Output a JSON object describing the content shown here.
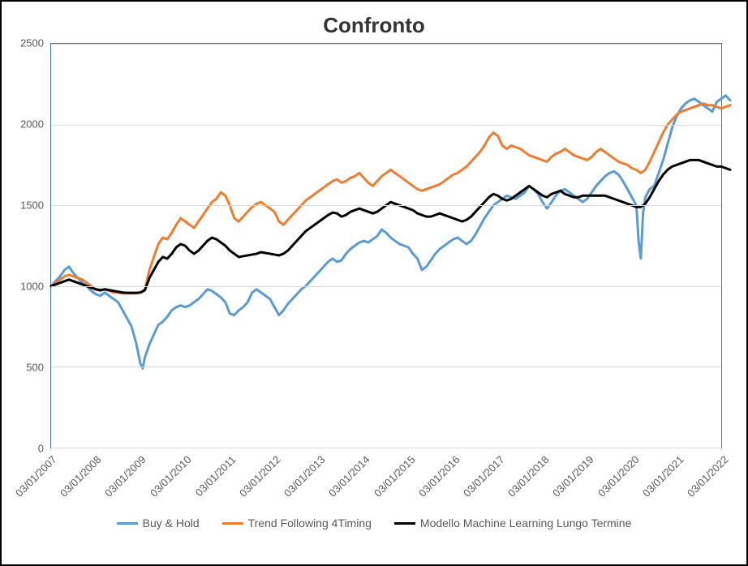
{
  "chart": {
    "type": "line",
    "title": "Confronto",
    "title_fontsize": 26,
    "title_fontweight": "bold",
    "background_color": "#ffffff",
    "border_color": "#000000",
    "plot_border_color": "#4472c4",
    "grid_color": "#d9d9d9",
    "axis_label_color": "#595959",
    "axis_label_fontsize": 13,
    "legend_fontsize": 14,
    "ylim": [
      0,
      2500
    ],
    "ytick_step": 500,
    "y_ticks": [
      0,
      500,
      1000,
      1500,
      2000,
      2500
    ],
    "x_categories": [
      "03/01/2007",
      "03/01/2008",
      "03/01/2009",
      "03/01/2010",
      "03/01/2011",
      "03/01/2012",
      "03/01/2013",
      "03/01/2014",
      "03/01/2015",
      "03/01/2016",
      "03/01/2017",
      "03/01/2018",
      "03/01/2019",
      "03/01/2020",
      "03/01/2021",
      "03/01/2022"
    ],
    "x_index": [
      0,
      1,
      2,
      3,
      4,
      5,
      6,
      7,
      8,
      9,
      10,
      11,
      12,
      13,
      14,
      15
    ],
    "x_tick_rotation": -45,
    "series": [
      {
        "name": "Buy & Hold",
        "color": "#5b9bd5",
        "line_width": 3,
        "data_x": [
          0,
          0.1,
          0.2,
          0.3,
          0.4,
          0.5,
          0.6,
          0.7,
          0.8,
          0.9,
          1,
          1.1,
          1.2,
          1.3,
          1.4,
          1.5,
          1.6,
          1.7,
          1.8,
          1.9,
          2,
          2.05,
          2.1,
          2.2,
          2.3,
          2.4,
          2.5,
          2.6,
          2.7,
          2.8,
          2.9,
          3,
          3.1,
          3.2,
          3.3,
          3.4,
          3.5,
          3.6,
          3.7,
          3.8,
          3.9,
          4,
          4.1,
          4.2,
          4.3,
          4.4,
          4.5,
          4.6,
          4.7,
          4.8,
          4.9,
          5,
          5.1,
          5.2,
          5.3,
          5.4,
          5.5,
          5.6,
          5.7,
          5.8,
          5.9,
          6,
          6.1,
          6.2,
          6.3,
          6.4,
          6.5,
          6.6,
          6.7,
          6.8,
          6.9,
          7,
          7.1,
          7.2,
          7.3,
          7.4,
          7.5,
          7.6,
          7.7,
          7.8,
          7.9,
          8,
          8.1,
          8.2,
          8.3,
          8.4,
          8.5,
          8.6,
          8.7,
          8.8,
          8.9,
          9,
          9.1,
          9.2,
          9.3,
          9.4,
          9.5,
          9.6,
          9.7,
          9.8,
          9.9,
          10,
          10.1,
          10.2,
          10.3,
          10.4,
          10.5,
          10.6,
          10.7,
          10.8,
          10.9,
          11,
          11.1,
          11.2,
          11.3,
          11.4,
          11.5,
          11.6,
          11.7,
          11.8,
          11.9,
          12,
          12.1,
          12.2,
          12.3,
          12.4,
          12.5,
          12.6,
          12.7,
          12.8,
          12.9,
          13,
          13.1,
          13.15,
          13.2,
          13.25,
          13.3,
          13.4,
          13.5,
          13.6,
          13.7,
          13.8,
          13.9,
          14,
          14.1,
          14.2,
          14.3,
          14.4,
          14.5,
          14.6,
          14.7,
          14.8,
          14.9,
          15,
          15.1,
          15.2
        ],
        "data_y": [
          1000,
          1030,
          1060,
          1100,
          1120,
          1080,
          1050,
          1020,
          1000,
          970,
          950,
          940,
          960,
          940,
          920,
          900,
          850,
          800,
          750,
          650,
          520,
          490,
          560,
          640,
          700,
          760,
          780,
          810,
          850,
          870,
          880,
          870,
          880,
          900,
          920,
          950,
          980,
          970,
          950,
          930,
          900,
          830,
          820,
          850,
          870,
          900,
          960,
          980,
          960,
          940,
          920,
          870,
          820,
          850,
          890,
          920,
          950,
          980,
          1000,
          1030,
          1060,
          1090,
          1120,
          1150,
          1170,
          1150,
          1160,
          1200,
          1230,
          1250,
          1270,
          1280,
          1270,
          1290,
          1310,
          1350,
          1330,
          1300,
          1280,
          1260,
          1250,
          1240,
          1200,
          1170,
          1100,
          1120,
          1160,
          1200,
          1230,
          1250,
          1270,
          1290,
          1300,
          1280,
          1260,
          1280,
          1320,
          1370,
          1420,
          1460,
          1500,
          1520,
          1540,
          1560,
          1550,
          1540,
          1560,
          1580,
          1620,
          1600,
          1570,
          1520,
          1480,
          1520,
          1560,
          1590,
          1600,
          1580,
          1560,
          1540,
          1520,
          1540,
          1580,
          1620,
          1650,
          1680,
          1700,
          1710,
          1690,
          1650,
          1600,
          1550,
          1500,
          1280,
          1170,
          1450,
          1550,
          1600,
          1620,
          1700,
          1780,
          1880,
          1980,
          2050,
          2100,
          2130,
          2150,
          2160,
          2140,
          2120,
          2100,
          2080,
          2140,
          2160,
          2180,
          2150
        ]
      },
      {
        "name": "Trend Following 4Timing",
        "color": "#ed7d31",
        "line_width": 3,
        "data_x": [
          0,
          0.1,
          0.2,
          0.3,
          0.4,
          0.5,
          0.6,
          0.7,
          0.8,
          0.9,
          1,
          1.1,
          1.2,
          1.3,
          1.4,
          1.5,
          1.6,
          1.7,
          1.8,
          1.9,
          2,
          2.1,
          2.2,
          2.3,
          2.4,
          2.5,
          2.6,
          2.7,
          2.8,
          2.9,
          3,
          3.1,
          3.2,
          3.3,
          3.4,
          3.5,
          3.6,
          3.7,
          3.8,
          3.9,
          4,
          4.1,
          4.2,
          4.3,
          4.4,
          4.5,
          4.6,
          4.7,
          4.8,
          4.9,
          5,
          5.1,
          5.2,
          5.3,
          5.4,
          5.5,
          5.6,
          5.7,
          5.8,
          5.9,
          6,
          6.1,
          6.2,
          6.3,
          6.4,
          6.5,
          6.6,
          6.7,
          6.8,
          6.9,
          7,
          7.1,
          7.2,
          7.3,
          7.4,
          7.5,
          7.6,
          7.7,
          7.8,
          7.9,
          8,
          8.1,
          8.2,
          8.3,
          8.4,
          8.5,
          8.6,
          8.7,
          8.8,
          8.9,
          9,
          9.1,
          9.2,
          9.3,
          9.4,
          9.5,
          9.6,
          9.7,
          9.8,
          9.9,
          10,
          10.1,
          10.2,
          10.3,
          10.4,
          10.5,
          10.6,
          10.7,
          10.8,
          10.9,
          11,
          11.1,
          11.2,
          11.3,
          11.4,
          11.5,
          11.6,
          11.7,
          11.8,
          11.9,
          12,
          12.1,
          12.2,
          12.3,
          12.4,
          12.5,
          12.6,
          12.7,
          12.8,
          12.9,
          13,
          13.1,
          13.2,
          13.3,
          13.4,
          13.5,
          13.6,
          13.7,
          13.8,
          13.9,
          14,
          14.1,
          14.2,
          14.3,
          14.4,
          14.5,
          14.6,
          14.7,
          14.8,
          14.9,
          15,
          15.1,
          15.2
        ],
        "data_y": [
          1000,
          1020,
          1040,
          1060,
          1070,
          1060,
          1050,
          1040,
          1020,
          1000,
          980,
          970,
          980,
          970,
          960,
          960,
          955,
          955,
          955,
          955,
          960,
          980,
          1100,
          1180,
          1260,
          1300,
          1290,
          1330,
          1380,
          1420,
          1400,
          1380,
          1360,
          1400,
          1440,
          1480,
          1520,
          1540,
          1580,
          1560,
          1500,
          1420,
          1400,
          1430,
          1460,
          1490,
          1510,
          1520,
          1500,
          1480,
          1460,
          1400,
          1380,
          1410,
          1440,
          1470,
          1500,
          1530,
          1550,
          1570,
          1590,
          1610,
          1630,
          1650,
          1660,
          1640,
          1650,
          1670,
          1680,
          1700,
          1670,
          1640,
          1620,
          1650,
          1680,
          1700,
          1720,
          1700,
          1680,
          1660,
          1640,
          1620,
          1600,
          1590,
          1600,
          1610,
          1620,
          1630,
          1650,
          1670,
          1690,
          1700,
          1720,
          1740,
          1770,
          1800,
          1830,
          1870,
          1920,
          1950,
          1930,
          1870,
          1850,
          1870,
          1860,
          1850,
          1830,
          1810,
          1800,
          1790,
          1780,
          1770,
          1800,
          1820,
          1830,
          1850,
          1830,
          1810,
          1800,
          1790,
          1780,
          1800,
          1830,
          1850,
          1830,
          1810,
          1790,
          1770,
          1760,
          1750,
          1730,
          1720,
          1700,
          1720,
          1770,
          1830,
          1890,
          1950,
          2000,
          2030,
          2060,
          2080,
          2090,
          2100,
          2110,
          2120,
          2130,
          2120,
          2120,
          2110,
          2100,
          2110,
          2120
        ]
      },
      {
        "name": "Modello Machine Learning Lungo Termine",
        "color": "#000000",
        "line_width": 3,
        "data_x": [
          0,
          0.1,
          0.2,
          0.3,
          0.4,
          0.5,
          0.6,
          0.7,
          0.8,
          0.9,
          1,
          1.1,
          1.2,
          1.3,
          1.4,
          1.5,
          1.6,
          1.7,
          1.8,
          1.9,
          2,
          2.1,
          2.2,
          2.3,
          2.4,
          2.5,
          2.6,
          2.7,
          2.8,
          2.9,
          3,
          3.1,
          3.2,
          3.3,
          3.4,
          3.5,
          3.6,
          3.7,
          3.8,
          3.9,
          4,
          4.1,
          4.2,
          4.3,
          4.4,
          4.5,
          4.6,
          4.7,
          4.8,
          4.9,
          5,
          5.1,
          5.2,
          5.3,
          5.4,
          5.5,
          5.6,
          5.7,
          5.8,
          5.9,
          6,
          6.1,
          6.2,
          6.3,
          6.4,
          6.5,
          6.6,
          6.7,
          6.8,
          6.9,
          7,
          7.1,
          7.2,
          7.3,
          7.4,
          7.5,
          7.6,
          7.7,
          7.8,
          7.9,
          8,
          8.1,
          8.2,
          8.3,
          8.4,
          8.5,
          8.6,
          8.7,
          8.8,
          8.9,
          9,
          9.1,
          9.2,
          9.3,
          9.4,
          9.5,
          9.6,
          9.7,
          9.8,
          9.9,
          10,
          10.1,
          10.2,
          10.3,
          10.4,
          10.5,
          10.6,
          10.7,
          10.8,
          10.9,
          11,
          11.1,
          11.2,
          11.3,
          11.4,
          11.5,
          11.6,
          11.7,
          11.8,
          11.9,
          12,
          12.1,
          12.2,
          12.3,
          12.4,
          12.5,
          12.6,
          12.7,
          12.8,
          12.9,
          13,
          13.1,
          13.2,
          13.3,
          13.4,
          13.5,
          13.6,
          13.7,
          13.8,
          13.9,
          14,
          14.1,
          14.2,
          14.3,
          14.4,
          14.5,
          14.6,
          14.7,
          14.8,
          14.9,
          15,
          15.1,
          15.2
        ],
        "data_y": [
          1000,
          1010,
          1020,
          1030,
          1040,
          1030,
          1020,
          1010,
          1000,
          990,
          980,
          975,
          980,
          975,
          970,
          965,
          960,
          958,
          958,
          958,
          960,
          975,
          1050,
          1100,
          1150,
          1180,
          1170,
          1200,
          1240,
          1260,
          1250,
          1220,
          1200,
          1220,
          1250,
          1280,
          1300,
          1290,
          1270,
          1250,
          1220,
          1200,
          1180,
          1185,
          1190,
          1195,
          1200,
          1210,
          1205,
          1200,
          1195,
          1190,
          1200,
          1220,
          1250,
          1280,
          1310,
          1340,
          1360,
          1380,
          1400,
          1420,
          1440,
          1455,
          1450,
          1430,
          1440,
          1460,
          1470,
          1480,
          1470,
          1460,
          1450,
          1460,
          1480,
          1500,
          1520,
          1510,
          1500,
          1490,
          1480,
          1470,
          1450,
          1440,
          1430,
          1430,
          1440,
          1450,
          1440,
          1430,
          1420,
          1410,
          1400,
          1410,
          1430,
          1460,
          1490,
          1520,
          1550,
          1570,
          1560,
          1540,
          1530,
          1540,
          1560,
          1580,
          1600,
          1620,
          1600,
          1580,
          1560,
          1550,
          1570,
          1580,
          1590,
          1570,
          1560,
          1550,
          1550,
          1560,
          1560,
          1560,
          1560,
          1560,
          1560,
          1550,
          1540,
          1530,
          1520,
          1510,
          1500,
          1490,
          1490,
          1510,
          1550,
          1600,
          1650,
          1690,
          1720,
          1740,
          1750,
          1760,
          1770,
          1780,
          1780,
          1780,
          1770,
          1760,
          1750,
          1740,
          1740,
          1730,
          1720
        ]
      }
    ]
  }
}
